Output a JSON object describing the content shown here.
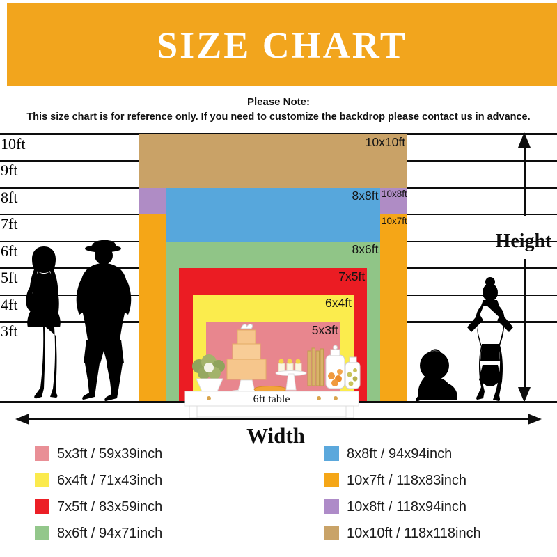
{
  "header": {
    "title": "SIZE CHART",
    "bg_color": "#F2A51D",
    "text_color": "#FFFFFF"
  },
  "note": {
    "heading": "Please Note:",
    "body": "This size chart is for reference only. If you need to customize the backdrop please contact us in advance."
  },
  "scene": {
    "table_label": "6ft table",
    "people": [
      "woman-silhouette",
      "man-silhouette",
      "baby-silhouette",
      "woman-hands-on-hips-silhouette"
    ]
  },
  "chart_data": {
    "type": "table",
    "title": "SIZE CHART",
    "xlabel": "Width",
    "ylabel": "Height",
    "grid": true,
    "legend_position": "bottom",
    "y_axis": {
      "unit": "ft",
      "ticks_ft": [
        10,
        9,
        8,
        7,
        6,
        5,
        4,
        3
      ],
      "tick_labels": [
        "10ft",
        "9ft",
        "8ft",
        "7ft",
        "6ft",
        "5ft",
        "4ft",
        "3ft"
      ]
    },
    "sizes": [
      {
        "label": "10x10ft",
        "width_ft": 10,
        "height_ft": 10,
        "size_inch": "118x118inch",
        "color": "#C9A267"
      },
      {
        "label": "10x8ft",
        "width_ft": 10,
        "height_ft": 8,
        "size_inch": "118x94inch",
        "color": "#AF8CC5"
      },
      {
        "label": "10x7ft",
        "width_ft": 10,
        "height_ft": 7,
        "size_inch": "118x83inch",
        "color": "#F5A617"
      },
      {
        "label": "8x8ft",
        "width_ft": 8,
        "height_ft": 8,
        "size_inch": "94x94inch",
        "color": "#57A7DC"
      },
      {
        "label": "8x6ft",
        "width_ft": 8,
        "height_ft": 6,
        "size_inch": "94x71inch",
        "color": "#90C587"
      },
      {
        "label": "7x5ft",
        "width_ft": 7,
        "height_ft": 5,
        "size_inch": "83x59inch",
        "color": "#EB1C23"
      },
      {
        "label": "6x4ft",
        "width_ft": 6,
        "height_ft": 4,
        "size_inch": "71x43inch",
        "color": "#FBEC4D"
      },
      {
        "label": "5x3ft",
        "width_ft": 5,
        "height_ft": 3,
        "size_inch": "59x39inch",
        "color": "#E8868E"
      }
    ],
    "legend_columns": [
      [
        {
          "label": "5x3ft / 59x39inch",
          "color": "#E98F96"
        },
        {
          "label": "6x4ft / 71x43inch",
          "color": "#FBEA4D"
        },
        {
          "label": "7x5ft / 83x59inch",
          "color": "#EC1F26"
        },
        {
          "label": "8x6ft / 94x71inch",
          "color": "#93C78B"
        }
      ],
      [
        {
          "label": "8x8ft / 94x94inch",
          "color": "#5BA8DC"
        },
        {
          "label": "10x7ft / 118x83inch",
          "color": "#F5A617"
        },
        {
          "label": "10x8ft / 118x94inch",
          "color": "#AE8BC8"
        },
        {
          "label": "10x10ft / 118x118inch",
          "color": "#C9A368"
        }
      ]
    ]
  }
}
